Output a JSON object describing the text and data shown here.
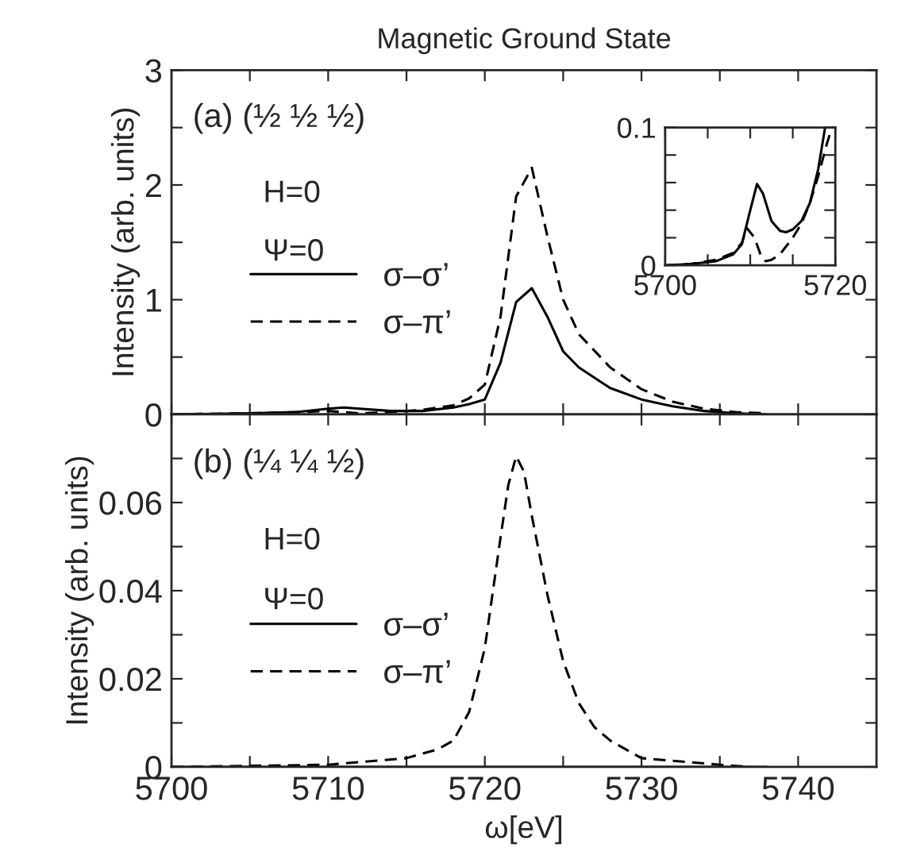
{
  "chart_data": [
    {
      "type": "line",
      "title": "Magnetic Ground State",
      "ylabel": "Intensity (arb. units)",
      "xlim": [
        5700,
        5745
      ],
      "ylim": [
        0,
        3
      ],
      "xticks": [
        {
          "value": 5700,
          "label": null
        },
        {
          "value": 5705,
          "label": null
        },
        {
          "value": 5710,
          "label": null
        },
        {
          "value": 5715,
          "label": null
        },
        {
          "value": 5720,
          "label": null
        },
        {
          "value": 5725,
          "label": null
        },
        {
          "value": 5730,
          "label": null
        },
        {
          "value": 5735,
          "label": null
        },
        {
          "value": 5740,
          "label": null
        }
      ],
      "yticks": [
        0,
        {
          "value": 0.5,
          "label": null
        },
        1,
        {
          "value": 1.5,
          "label": null
        },
        2,
        {
          "value": 2.5,
          "label": null
        },
        3
      ],
      "tick_labels": "y",
      "grid": false,
      "legend": "left",
      "annotations": [
        "(a) (½ ½ ½)",
        "H=0",
        "Ψ=0"
      ],
      "series": [
        {
          "name": "σ–σ’",
          "color": "#000000",
          "line_style": "solid",
          "x": [
            5700,
            5705,
            5708,
            5710,
            5711,
            5712,
            5714,
            5716,
            5718,
            5719,
            5720,
            5721,
            5722,
            5723,
            5724,
            5725,
            5726,
            5728,
            5730,
            5732,
            5734,
            5736,
            5738
          ],
          "values": [
            0,
            0.01,
            0.02,
            0.05,
            0.06,
            0.05,
            0.03,
            0.03,
            0.06,
            0.09,
            0.13,
            0.45,
            0.98,
            1.1,
            0.85,
            0.55,
            0.41,
            0.23,
            0.13,
            0.07,
            0.03,
            0.01,
            0
          ]
        },
        {
          "name": "σ–π’",
          "color": "#000000",
          "line_style": "dashed",
          "x": [
            5700,
            5705,
            5708,
            5710,
            5712,
            5714,
            5716,
            5718,
            5719,
            5720,
            5721,
            5722,
            5723,
            5724,
            5725,
            5726,
            5728,
            5730,
            5732,
            5734,
            5736,
            5738
          ],
          "values": [
            0,
            0.01,
            0.02,
            0.03,
            0.01,
            0.02,
            0.04,
            0.08,
            0.14,
            0.26,
            0.85,
            1.9,
            2.15,
            1.55,
            1.0,
            0.7,
            0.41,
            0.22,
            0.11,
            0.05,
            0.02,
            0.01
          ]
        }
      ]
    },
    {
      "type": "line",
      "xlim": [
        5700,
        5720
      ],
      "ylim": [
        0,
        0.1
      ],
      "xticks": [
        5700,
        {
          "value": 5705,
          "label": null
        },
        {
          "value": 5710,
          "label": null
        },
        {
          "value": 5715,
          "label": null
        },
        5720
      ],
      "yticks": [
        0,
        {
          "value": 0.02,
          "label": null
        },
        {
          "value": 0.04,
          "label": null
        },
        {
          "value": 0.06,
          "label": null
        },
        {
          "value": 0.08,
          "label": null
        },
        0.1
      ],
      "grid": false,
      "series": [
        {
          "color": "#000000",
          "line_style": "solid",
          "x": [
            5700,
            5703,
            5706,
            5708,
            5709,
            5710,
            5710.8,
            5711.5,
            5712.5,
            5713.5,
            5714.2,
            5715,
            5716,
            5717,
            5718,
            5718.8
          ],
          "values": [
            0,
            0.001,
            0.003,
            0.008,
            0.015,
            0.04,
            0.059,
            0.052,
            0.032,
            0.025,
            0.024,
            0.026,
            0.032,
            0.045,
            0.07,
            0.1
          ]
        },
        {
          "color": "#000000",
          "line_style": "dashed",
          "x": [
            5700,
            5703,
            5706,
            5708,
            5709,
            5709.6,
            5710.5,
            5711.2,
            5711.8,
            5712.5,
            5713.5,
            5715,
            5716,
            5717,
            5718,
            5719,
            5719.6
          ],
          "values": [
            0,
            0.001,
            0.004,
            0.009,
            0.016,
            0.027,
            0.02,
            0.008,
            0.003,
            0.004,
            0.008,
            0.02,
            0.03,
            0.045,
            0.065,
            0.088,
            0.1
          ]
        }
      ]
    },
    {
      "type": "line",
      "xlabel": "ω[eV]",
      "ylabel": "Intensity (arb. units)",
      "xlim": [
        5700,
        5745
      ],
      "ylim": [
        0,
        0.08
      ],
      "xticks": [
        5700,
        {
          "value": 5705,
          "label": null
        },
        5710,
        {
          "value": 5715,
          "label": null
        },
        5720,
        {
          "value": 5725,
          "label": null
        },
        5730,
        {
          "value": 5735,
          "label": null
        },
        5740
      ],
      "yticks": [
        0,
        {
          "value": 0.01,
          "label": null
        },
        0.02,
        {
          "value": 0.03,
          "label": null
        },
        0.04,
        {
          "value": 0.05,
          "label": null
        },
        0.06,
        {
          "value": 0.07,
          "label": null
        },
        {
          "value": 0.08,
          "label": null
        }
      ],
      "grid": false,
      "legend": "left",
      "annotations": [
        "(b) (¼ ¼ ½)",
        "H=0",
        "Ψ=0"
      ],
      "series": [
        {
          "name": "σ–σ’",
          "color": "#000000",
          "line_style": "solid",
          "x": [
            5700,
            5710,
            5720,
            5730,
            5738
          ],
          "values": [
            0,
            0,
            0,
            0,
            0
          ]
        },
        {
          "name": "σ–π’",
          "color": "#000000",
          "line_style": "dashed",
          "x": [
            5700,
            5710,
            5715,
            5717,
            5718,
            5719,
            5720,
            5721,
            5721.5,
            5722,
            5722.5,
            5723,
            5724,
            5725,
            5726,
            5727,
            5728,
            5730,
            5735,
            5737
          ],
          "values": [
            0,
            0.0005,
            0.002,
            0.004,
            0.006,
            0.0125,
            0.027,
            0.052,
            0.064,
            0.0705,
            0.067,
            0.057,
            0.039,
            0.024,
            0.0145,
            0.009,
            0.006,
            0.002,
            0.0005,
            0
          ]
        }
      ]
    }
  ]
}
